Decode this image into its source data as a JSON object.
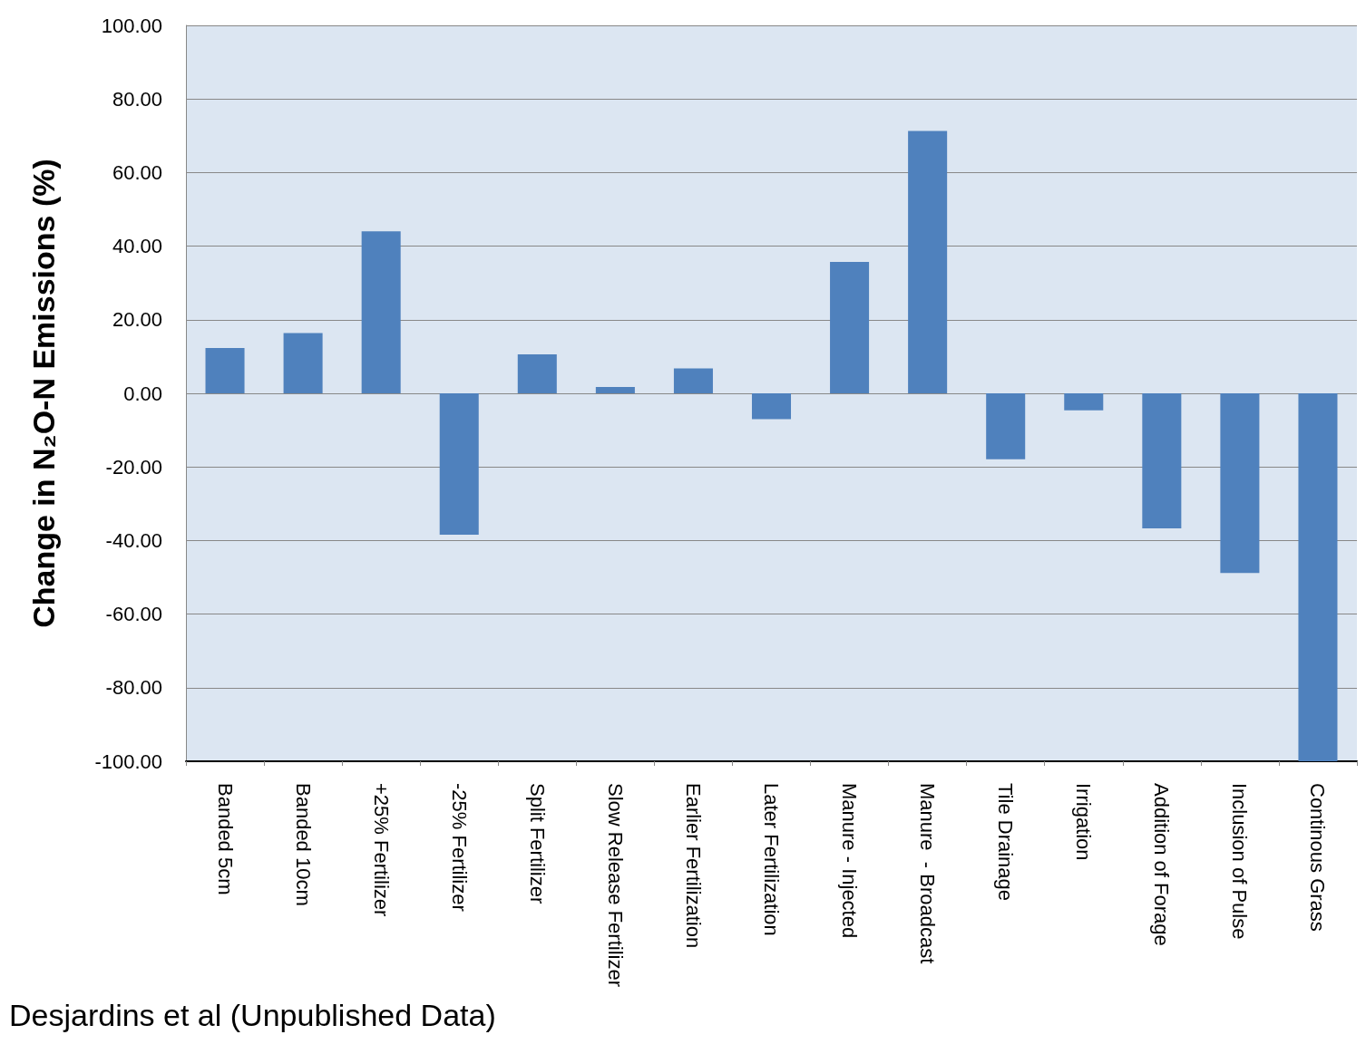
{
  "chart_data": {
    "type": "bar",
    "ylabel": "Change in N₂O-N Emissions (%)",
    "categories": [
      "Banded 5cm",
      "Banded 10cm",
      "+25% Fertilizer",
      "-25% Fertilizer",
      "Split Fertilizer",
      "Slow Release Fertilizer",
      "Earlier Fertilization",
      "Later Fertilization",
      "Manure - Injected",
      "Manure  - Broadcast",
      "Tile Drainage",
      "Irrigation",
      "Addition of Forage",
      "Inclusion of Pulse",
      "Continous Grass"
    ],
    "values": [
      12.3,
      16.4,
      44.0,
      -38.4,
      10.6,
      1.7,
      6.8,
      -7.0,
      35.7,
      71.3,
      -17.9,
      -4.6,
      -36.7,
      -48.8,
      -100
    ],
    "color": "#4f81bd",
    "ylim": [
      -100,
      100
    ],
    "yticks": [
      {
        "value": -100,
        "label": "-100.00"
      },
      {
        "value": -80,
        "label": "-80.00"
      },
      {
        "value": -60,
        "label": "-60.00"
      },
      {
        "value": -40,
        "label": "-40.00"
      },
      {
        "value": -20,
        "label": "-20.00"
      },
      {
        "value": 0,
        "label": "0.00"
      },
      {
        "value": 20,
        "label": "20.00"
      },
      {
        "value": 40,
        "label": "40.00"
      },
      {
        "value": 60,
        "label": "60.00"
      },
      {
        "value": 80,
        "label": "80.00"
      },
      {
        "value": 100,
        "label": "100.00"
      }
    ],
    "grid": "y",
    "annotations": [
      "Desjardins et al (Unpublished Data)"
    ]
  }
}
